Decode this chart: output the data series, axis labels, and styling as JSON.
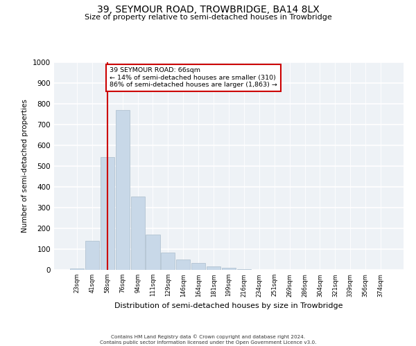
{
  "title": "39, SEYMOUR ROAD, TROWBRIDGE, BA14 8LX",
  "subtitle": "Size of property relative to semi-detached houses in Trowbridge",
  "xlabel": "Distribution of semi-detached houses by size in Trowbridge",
  "ylabel": "Number of semi-detached properties",
  "bin_labels": [
    "23sqm",
    "41sqm",
    "58sqm",
    "76sqm",
    "94sqm",
    "111sqm",
    "129sqm",
    "146sqm",
    "164sqm",
    "181sqm",
    "199sqm",
    "216sqm",
    "234sqm",
    "251sqm",
    "269sqm",
    "286sqm",
    "304sqm",
    "321sqm",
    "339sqm",
    "356sqm",
    "374sqm"
  ],
  "bar_heights": [
    8,
    140,
    545,
    770,
    355,
    170,
    82,
    50,
    33,
    18,
    10,
    4,
    0,
    0,
    0,
    0,
    0,
    0,
    0,
    0,
    0
  ],
  "bar_color": "#c8d8e8",
  "bar_edge_color": "#aabccc",
  "property_bin_index": 2,
  "vline_color": "#cc0000",
  "annotation_text": "39 SEYMOUR ROAD: 66sqm\n← 14% of semi-detached houses are smaller (310)\n86% of semi-detached houses are larger (1,863) →",
  "annotation_box_color": "#ffffff",
  "annotation_box_edge": "#cc0000",
  "ylim": [
    0,
    1000
  ],
  "yticks": [
    0,
    100,
    200,
    300,
    400,
    500,
    600,
    700,
    800,
    900,
    1000
  ],
  "bg_color": "#eef2f6",
  "footer_line1": "Contains HM Land Registry data © Crown copyright and database right 2024.",
  "footer_line2": "Contains public sector information licensed under the Open Government Licence v3.0."
}
